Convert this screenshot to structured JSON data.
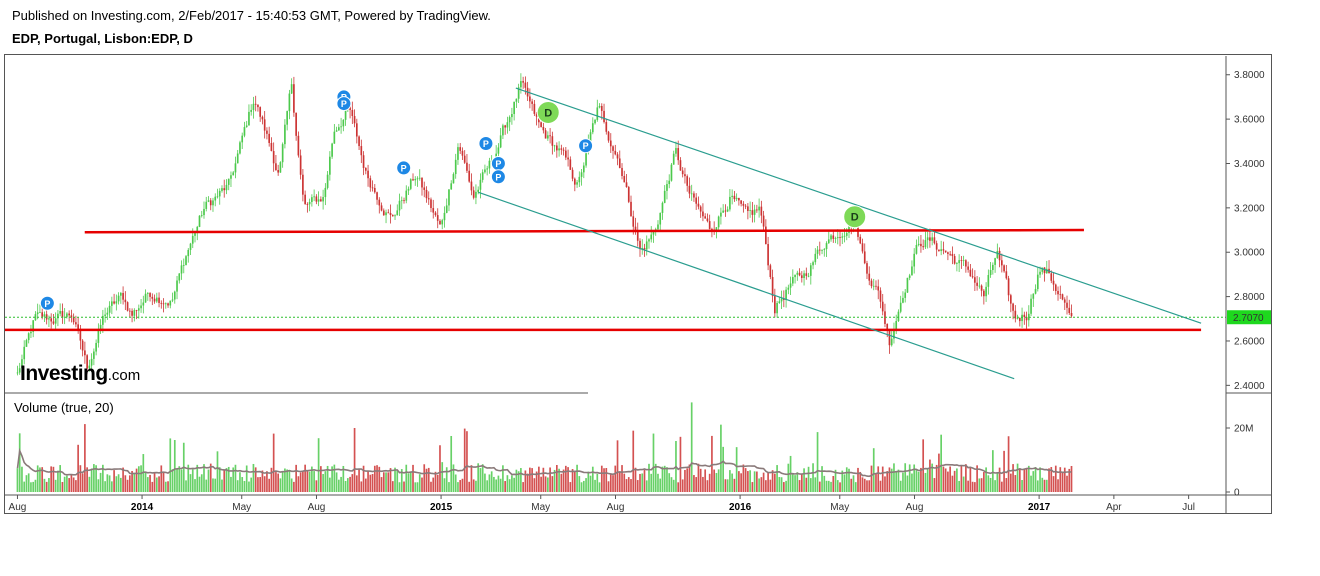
{
  "header": {
    "published": "Published on Investing.com, 2/Feb/2017 - 15:40:53 GMT, Powered by TradingView.",
    "symbol": "EDP, Portugal, Lisbon:EDP, D"
  },
  "logo": {
    "main": "Investing",
    "suffix": ".com"
  },
  "volume_label": "Volume (true, 20)",
  "colors": {
    "up": "#4cc94c",
    "down": "#cc3333",
    "channel": "#2a9d8f",
    "support": "#e60000",
    "price_badge": "#1ed81e",
    "event_p": "#1e88e5",
    "event_d": "#7ed957",
    "volume_ma": "#8a7a7a"
  },
  "chart_data": {
    "type": "candlestick",
    "price_axis": {
      "ticks": [
        2.4,
        2.6,
        2.8,
        3.0,
        3.2,
        3.4,
        3.6,
        3.8
      ],
      "labels": [
        "2.4000",
        "2.6000",
        "2.8000",
        "3.0000",
        "3.2000",
        "3.4000",
        "3.6000",
        "3.8000"
      ],
      "range": [
        2.37,
        3.88
      ]
    },
    "volume_axis": {
      "ticks": [
        0,
        20
      ],
      "labels": [
        "0",
        "20M"
      ],
      "range": [
        0,
        30
      ]
    },
    "time_axis": {
      "labels": [
        {
          "t": 0.0,
          "label": "Aug",
          "bold": false
        },
        {
          "t": 5.0,
          "label": "2014",
          "bold": true
        },
        {
          "t": 9.0,
          "label": "May",
          "bold": false
        },
        {
          "t": 12.0,
          "label": "Aug",
          "bold": false
        },
        {
          "t": 17.0,
          "label": "2015",
          "bold": true
        },
        {
          "t": 21.0,
          "label": "May",
          "bold": false
        },
        {
          "t": 24.0,
          "label": "Aug",
          "bold": false
        },
        {
          "t": 29.0,
          "label": "2016",
          "bold": true
        },
        {
          "t": 33.0,
          "label": "May",
          "bold": false
        },
        {
          "t": 36.0,
          "label": "Aug",
          "bold": false
        },
        {
          "t": 41.0,
          "label": "2017",
          "bold": true
        },
        {
          "t": 44.0,
          "label": "Apr",
          "bold": false
        },
        {
          "t": 47.0,
          "label": "Jul",
          "bold": false
        }
      ],
      "range": [
        -0.5,
        48.5
      ]
    },
    "last_price": {
      "value": 2.707,
      "label": "2.7070"
    },
    "anchors": [
      [
        0.0,
        2.45
      ],
      [
        0.7,
        2.7
      ],
      [
        1.5,
        2.7
      ],
      [
        2.2,
        2.72
      ],
      [
        2.8,
        2.48
      ],
      [
        3.5,
        2.72
      ],
      [
        4.2,
        2.8
      ],
      [
        4.6,
        2.72
      ],
      [
        5.3,
        2.82
      ],
      [
        6.2,
        2.78
      ],
      [
        6.8,
        3.0
      ],
      [
        7.5,
        3.2
      ],
      [
        8.5,
        3.3
      ],
      [
        9.5,
        3.7
      ],
      [
        10.5,
        3.35
      ],
      [
        11.0,
        3.75
      ],
      [
        11.5,
        3.2
      ],
      [
        12.3,
        3.25
      ],
      [
        12.7,
        3.55
      ],
      [
        13.3,
        3.65
      ],
      [
        14.0,
        3.35
      ],
      [
        15.0,
        3.15
      ],
      [
        16.0,
        3.35
      ],
      [
        17.0,
        3.1
      ],
      [
        17.7,
        3.5
      ],
      [
        18.3,
        3.25
      ],
      [
        19.0,
        3.4
      ],
      [
        20.2,
        3.75
      ],
      [
        21.0,
        3.55
      ],
      [
        21.8,
        3.45
      ],
      [
        22.5,
        3.3
      ],
      [
        23.3,
        3.65
      ],
      [
        24.2,
        3.4
      ],
      [
        25.0,
        3.0
      ],
      [
        25.6,
        3.1
      ],
      [
        26.4,
        3.45
      ],
      [
        27.0,
        3.25
      ],
      [
        27.8,
        3.1
      ],
      [
        28.6,
        3.25
      ],
      [
        29.3,
        3.15
      ],
      [
        29.8,
        3.2
      ],
      [
        30.4,
        2.75
      ],
      [
        31.0,
        2.85
      ],
      [
        31.6,
        2.9
      ],
      [
        32.4,
        3.05
      ],
      [
        33.0,
        3.1
      ],
      [
        33.6,
        3.15
      ],
      [
        34.0,
        2.95
      ],
      [
        34.6,
        2.8
      ],
      [
        35.0,
        2.6
      ],
      [
        35.6,
        2.85
      ],
      [
        36.2,
        3.05
      ],
      [
        36.6,
        3.05
      ],
      [
        37.3,
        3.0
      ],
      [
        37.8,
        2.95
      ],
      [
        38.3,
        2.9
      ],
      [
        38.8,
        2.8
      ],
      [
        39.3,
        3.0
      ],
      [
        40.0,
        2.7
      ],
      [
        40.5,
        2.72
      ],
      [
        41.0,
        2.93
      ],
      [
        41.4,
        2.9
      ],
      [
        41.9,
        2.8
      ],
      [
        42.3,
        2.68
      ]
    ],
    "support_lines": [
      {
        "from": [
          2.7,
          3.09
        ],
        "to": [
          42.8,
          3.1
        ]
      },
      {
        "from": [
          -0.5,
          2.65
        ],
        "to": [
          47.5,
          2.65
        ]
      }
    ],
    "channel_lines": [
      {
        "from": [
          20.0,
          3.74
        ],
        "to": [
          47.5,
          2.68
        ]
      },
      {
        "from": [
          18.5,
          3.27
        ],
        "to": [
          40.0,
          2.43
        ]
      }
    ],
    "events": [
      {
        "type": "P",
        "t": 1.2,
        "p": 2.77
      },
      {
        "type": "P",
        "t": 13.1,
        "p": 3.7
      },
      {
        "type": "P",
        "t": 13.1,
        "p": 3.67
      },
      {
        "type": "P",
        "t": 15.5,
        "p": 3.38
      },
      {
        "type": "P",
        "t": 18.8,
        "p": 3.49
      },
      {
        "type": "P",
        "t": 19.3,
        "p": 3.4
      },
      {
        "type": "P",
        "t": 19.3,
        "p": 3.34
      },
      {
        "type": "P",
        "t": 22.8,
        "p": 3.48
      },
      {
        "type": "D",
        "t": 21.3,
        "p": 3.63
      },
      {
        "type": "D",
        "t": 33.6,
        "p": 3.16
      }
    ]
  }
}
